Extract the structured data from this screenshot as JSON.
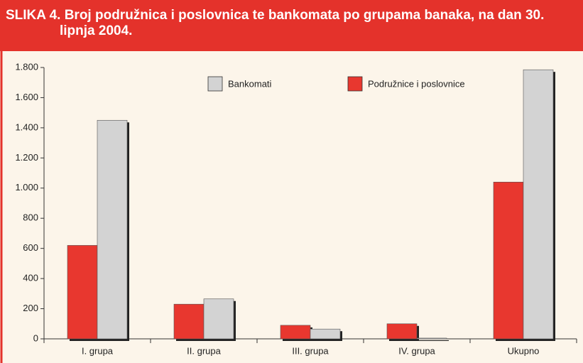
{
  "chart_data": {
    "type": "bar",
    "title": "SLIKA 4. Broj podružnica i poslovnica te bankomata po grupama banaka, na dan 30. lipnja 2004.",
    "categories": [
      "I. grupa",
      "II. grupa",
      "III. grupa",
      "IV. grupa",
      "Ukupno"
    ],
    "series": [
      {
        "name": "Podružnice i poslovnice",
        "color": "#e8372f",
        "values": [
          620,
          230,
          90,
          100,
          1040
        ]
      },
      {
        "name": "Bankomati",
        "color": "#d3d3d3",
        "values": [
          1450,
          265,
          65,
          5,
          1785
        ]
      }
    ],
    "ylim": [
      0,
      1800
    ],
    "yticks": [
      0,
      200,
      400,
      600,
      800,
      {
        "value": 1000,
        "label": "1.000"
      },
      {
        "value": 1200,
        "label": "1.200"
      },
      {
        "value": 1400,
        "label": "1.400"
      },
      {
        "value": 1600,
        "label": "1.600"
      },
      {
        "value": 1800,
        "label": "1.800"
      }
    ],
    "grid": false
  }
}
